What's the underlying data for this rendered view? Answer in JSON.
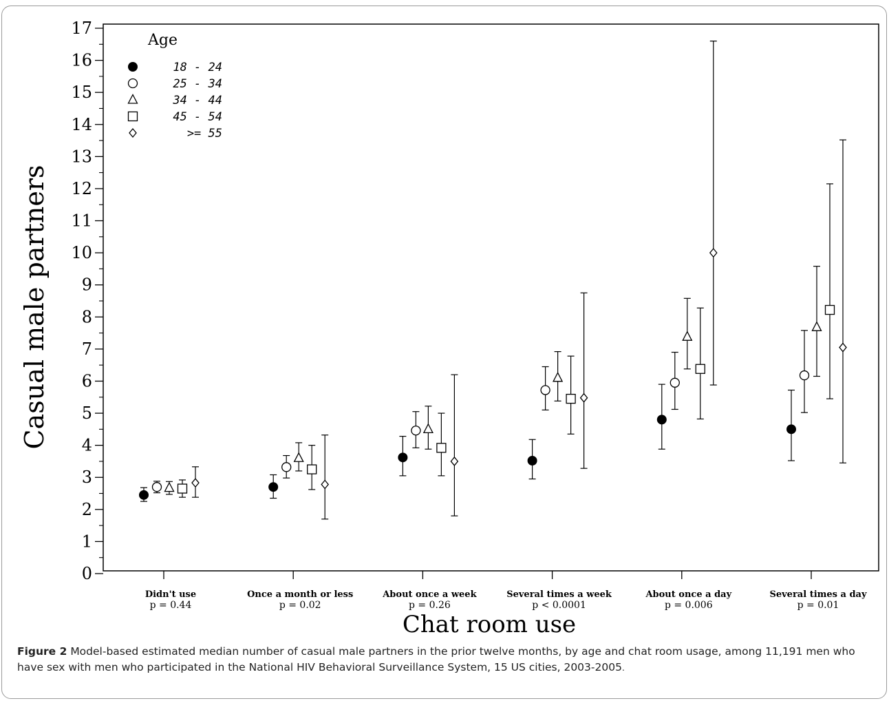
{
  "figure": {
    "label": "Figure 2",
    "caption": "Model-based estimated median number of casual male partners in the prior twelve months, by age and chat room usage, among 11,191 men who have sex with men who participated in the National HIV Behavioral Surveillance System, 15 US cities, 2003-2005",
    "caption_end": "."
  },
  "chart_data": {
    "type": "scatter",
    "xlabel": "Chat room use",
    "ylabel": "Casual male partners",
    "ylim": [
      0,
      17
    ],
    "yticks": [
      0,
      1,
      2,
      3,
      4,
      5,
      6,
      7,
      8,
      9,
      10,
      11,
      12,
      13,
      14,
      15,
      16,
      17
    ],
    "grid": false,
    "legend": {
      "title": "Age",
      "placement": "top-left"
    },
    "categories": [
      "Didn't use",
      "Once a month or less",
      "About once a week",
      "Several times a week",
      "About once a day",
      "Several times a day"
    ],
    "p_values": [
      "p = 0.44",
      "p = 0.02",
      "p = 0.26",
      "p < 0.0001",
      "p = 0.006",
      "p = 0.01"
    ],
    "series": [
      {
        "name": "18 - 24",
        "marker": "filled-circle",
        "values": [
          2.45,
          2.7,
          3.62,
          3.52,
          4.8,
          4.5
        ],
        "lower": [
          2.25,
          2.35,
          3.05,
          2.95,
          3.88,
          3.52
        ],
        "upper": [
          2.68,
          3.08,
          4.28,
          4.18,
          5.9,
          5.72
        ]
      },
      {
        "name": "25 - 34",
        "marker": "open-circle",
        "values": [
          2.7,
          3.32,
          4.46,
          5.72,
          5.95,
          6.18
        ],
        "lower": [
          2.52,
          2.98,
          3.92,
          5.1,
          5.12,
          5.02
        ],
        "upper": [
          2.88,
          3.68,
          5.05,
          6.45,
          6.9,
          7.58
        ]
      },
      {
        "name": "34 - 44",
        "marker": "open-triangle",
        "values": [
          2.67,
          3.6,
          4.5,
          6.1,
          7.38,
          7.68
        ],
        "lower": [
          2.47,
          3.2,
          3.88,
          5.38,
          6.38,
          6.15
        ],
        "upper": [
          2.87,
          4.08,
          5.22,
          6.92,
          8.58,
          9.58
        ]
      },
      {
        "name": "45 - 54",
        "marker": "open-square",
        "values": [
          2.65,
          3.25,
          3.92,
          5.45,
          6.38,
          8.22
        ],
        "lower": [
          2.38,
          2.62,
          3.05,
          4.35,
          4.82,
          5.45
        ],
        "upper": [
          2.92,
          4.0,
          5.0,
          6.78,
          8.28,
          12.15
        ]
      },
      {
        "name": ">= 55",
        "marker": "open-diamond",
        "values": [
          2.83,
          2.78,
          3.5,
          5.48,
          10.0,
          7.05
        ],
        "lower": [
          2.38,
          1.7,
          1.8,
          3.28,
          5.88,
          3.45
        ],
        "upper": [
          3.33,
          4.32,
          6.2,
          8.75,
          16.6,
          13.52
        ]
      }
    ]
  }
}
